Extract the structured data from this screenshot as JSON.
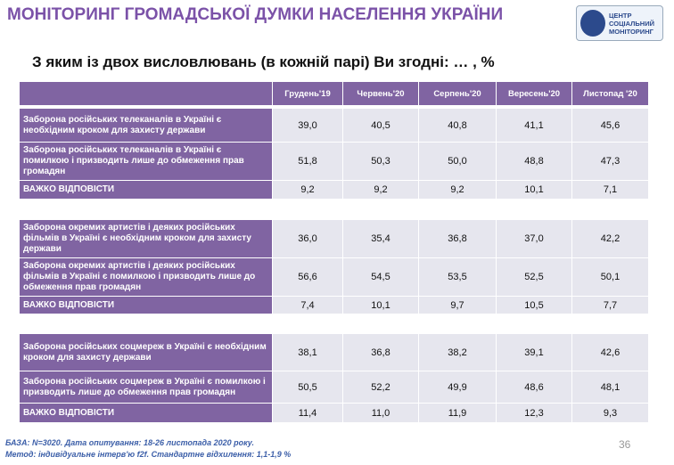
{
  "header": {
    "title": "МОНІТОРИНГ ГРОМАДСЬКОЇ ДУМКИ НАСЕЛЕННЯ УКРАЇНИ",
    "logo": [
      "ЦЕНТР",
      "СОЦІАЛЬНИЙ",
      "МОНІТОРИНГ"
    ]
  },
  "question": "З яким із двох висловлювань (в кожній парі) Ви згодні: … , %",
  "table": {
    "columns": [
      "Грудень'19",
      "Червень'20",
      "Серпень'20",
      "Вересень'20",
      "Листопад '20"
    ],
    "blocks": [
      {
        "rows": [
          {
            "label": "Заборона російських телеканалів в Україні є необхідним кроком для захисту держави",
            "values": [
              "39,0",
              "40,5",
              "40,8",
              "41,1",
              "45,6"
            ]
          },
          {
            "label": "Заборона російських телеканалів в Україні є помилкою і призводить лише до обмеження прав громадян",
            "values": [
              "51,8",
              "50,3",
              "50,0",
              "48,8",
              "47,3"
            ]
          },
          {
            "label": "ВАЖКО ВІДПОВІСТИ",
            "values": [
              "9,2",
              "9,2",
              "9,2",
              "10,1",
              "7,1"
            ]
          }
        ]
      },
      {
        "rows": [
          {
            "label": "Заборона окремих артистів і деяких російських фільмів в Україні є необхідним кроком для захисту держави",
            "values": [
              "36,0",
              "35,4",
              "36,8",
              "37,0",
              "42,2"
            ]
          },
          {
            "label": "Заборона окремих артистів і деяких російських фільмів в Україні є помилкою і призводить лише до обмеження прав громадян",
            "values": [
              "56,6",
              "54,5",
              "53,5",
              "52,5",
              "50,1"
            ]
          },
          {
            "label": "ВАЖКО ВІДПОВІСТИ",
            "values": [
              "7,4",
              "10,1",
              "9,7",
              "10,5",
              "7,7"
            ]
          }
        ]
      },
      {
        "rows": [
          {
            "label": "Заборона російських соцмереж в Україні є необхідним кроком для захисту держави",
            "values": [
              "38,1",
              "36,8",
              "38,2",
              "39,1",
              "42,6"
            ]
          },
          {
            "label": "Заборона російських соцмереж в Україні є помилкою і призводить лише до обмеження прав громадян",
            "values": [
              "50,5",
              "52,2",
              "49,9",
              "48,6",
              "48,1"
            ]
          },
          {
            "label": "ВАЖКО ВІДПОВІСТИ",
            "values": [
              "11,4",
              "11,0",
              "11,9",
              "12,3",
              "9,3"
            ]
          }
        ]
      }
    ]
  },
  "footer": {
    "base": "БАЗА: N=3020. Дата опитування: 18-26 листопада 2020 року.",
    "method": "Метод: індивідуальне інтерв'ю f2f. Стандартне відхилення: 1,1-1,9 %"
  },
  "page_number": "36"
}
